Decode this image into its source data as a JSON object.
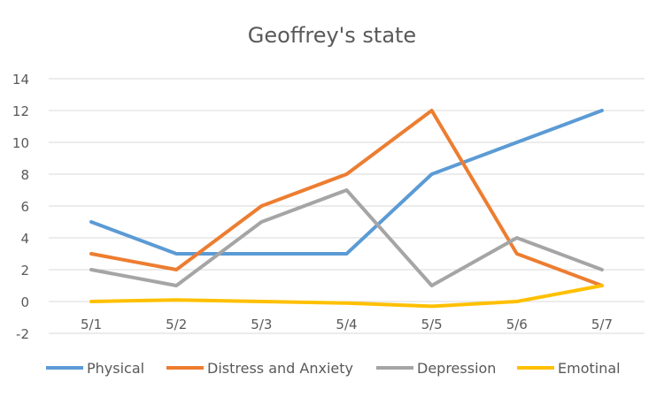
{
  "chart_data": {
    "type": "line",
    "title": "Geoffrey's state",
    "xlabel": "",
    "ylabel": "",
    "categories": [
      "5/1",
      "5/2",
      "5/3",
      "5/4",
      "5/5",
      "5/6",
      "5/7"
    ],
    "ylim": [
      -2,
      14
    ],
    "yticks": [
      -2,
      0,
      2,
      4,
      6,
      8,
      10,
      12,
      14
    ],
    "grid": true,
    "legend_position": "bottom",
    "series": [
      {
        "name": "Physical",
        "color": "#5B9BD5",
        "values": [
          5,
          3,
          3,
          3,
          8,
          10,
          12
        ]
      },
      {
        "name": "Distress and Anxiety",
        "color": "#ED7D31",
        "values": [
          3,
          2,
          6,
          8,
          12,
          3,
          1
        ]
      },
      {
        "name": "Depression",
        "color": "#A5A5A5",
        "values": [
          2,
          1,
          5,
          7,
          1,
          4,
          2
        ]
      },
      {
        "name": "Emotinal",
        "color": "#FFC000",
        "values": [
          0,
          0.1,
          0,
          -0.1,
          -0.3,
          0,
          1
        ]
      }
    ]
  }
}
